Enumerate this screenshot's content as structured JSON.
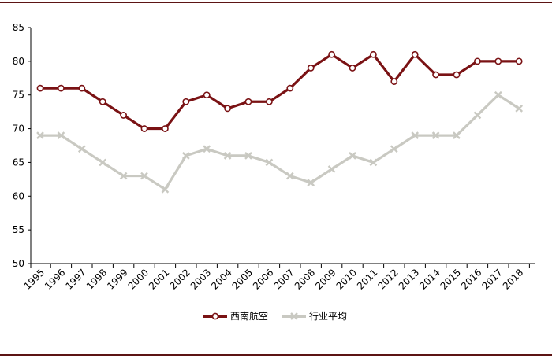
{
  "colors": {
    "frame": "#5c1414",
    "series_1": "#7a1214",
    "series_2": "#c9c9c2",
    "axis": "#000000"
  },
  "chart_data": {
    "type": "line",
    "title": "",
    "xlabel": "",
    "ylabel": "",
    "ylim": [
      50,
      85
    ],
    "yticks": [
      50,
      55,
      60,
      65,
      70,
      75,
      80,
      85
    ],
    "grid": false,
    "legend_position": "bottom-center",
    "categories": [
      "1995",
      "1996",
      "1997",
      "1998",
      "1999",
      "2000",
      "2001",
      "2002",
      "2003",
      "2004",
      "2005",
      "2006",
      "2007",
      "2008",
      "2009",
      "2010",
      "2011",
      "2012",
      "2013",
      "2014",
      "2015",
      "2016",
      "2017",
      "2018"
    ],
    "series": [
      {
        "name": "西南航空",
        "marker": "circle",
        "values": [
          76,
          76,
          76,
          74,
          72,
          70,
          70,
          74,
          75,
          73,
          74,
          74,
          76,
          79,
          81,
          79,
          81,
          77,
          81,
          78,
          78,
          80,
          80,
          80
        ]
      },
      {
        "name": "行业平均",
        "marker": "x",
        "values": [
          69,
          69,
          67,
          65,
          63,
          63,
          61,
          66,
          67,
          66,
          66,
          65,
          63,
          62,
          64,
          66,
          65,
          67,
          69,
          69,
          69,
          72,
          75,
          73
        ]
      }
    ]
  }
}
